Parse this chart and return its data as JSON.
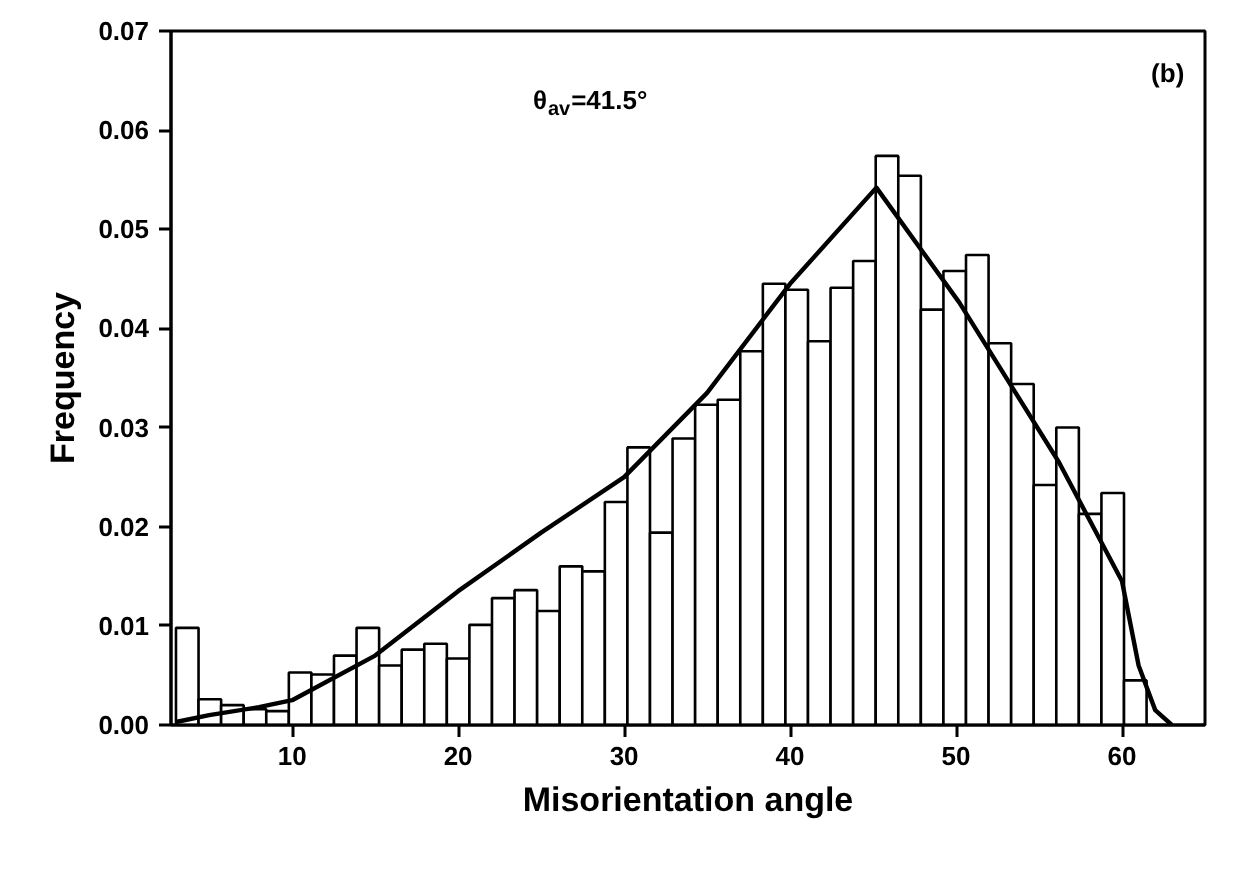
{
  "chart_data": {
    "type": "histogram",
    "xlabel": "Misorientation angle",
    "ylabel": "Frequency",
    "annotations": [
      "θ$_{av}$=41.5°",
      "(b)"
    ],
    "xlim": [
      2.7,
      65
    ],
    "ylim": [
      0,
      0.07
    ],
    "xticks": [
      10,
      20,
      30,
      40,
      50,
      60
    ],
    "yticks": [
      {
        "value": 0,
        "label": "0.00"
      },
      {
        "value": 0.01,
        "label": "0.01"
      },
      {
        "value": 0.02,
        "label": "0.02"
      },
      {
        "value": 0.03,
        "label": "0.03"
      },
      {
        "value": 0.04,
        "label": "0.04"
      },
      {
        "value": 0.05,
        "label": "0.05"
      },
      {
        "value": 0.06,
        "label": "0.06"
      },
      {
        "value": 0.07,
        "label": "0.07"
      }
    ],
    "grid": false,
    "series": [
      {
        "color": "#ffffff",
        "bins": [
          3,
          4.36,
          5.72,
          7.08,
          8.44,
          9.8,
          11.16,
          12.52,
          13.88,
          15.24,
          16.6,
          17.96,
          19.32,
          20.68,
          22.04,
          23.4,
          24.76,
          26.12,
          27.48,
          28.84,
          30.2,
          31.56,
          32.92,
          34.28,
          35.64,
          37,
          38.36,
          39.72,
          41.08,
          42.44,
          43.8,
          45.16,
          46.52,
          47.88,
          49.24,
          50.6,
          51.96,
          53.32,
          54.68,
          56.04,
          57.4,
          58.76,
          60.12,
          61.48
        ],
        "values": [
          0.0098,
          0.0026,
          0.002,
          0.0016,
          0.0014,
          0.0053,
          0.0051,
          0.007,
          0.0098,
          0.006,
          0.0076,
          0.0082,
          0.0067,
          0.0101,
          0.0128,
          0.0136,
          0.0115,
          0.016,
          0.0155,
          0.0225,
          0.028,
          0.0194,
          0.0289,
          0.0323,
          0.0328,
          0.0377,
          0.0445,
          0.0439,
          0.0387,
          0.0441,
          0.0468,
          0.0574,
          0.0554,
          0.0419,
          0.0458,
          0.0474,
          0.0385,
          0.0344,
          0.0242,
          0.03,
          0.0213,
          0.0234,
          0.0045
        ]
      },
      {
        "type": "line",
        "color": "#000000",
        "x": [
          3,
          5,
          8,
          10,
          15,
          20,
          25,
          30,
          35,
          40,
          45.2,
          50.2,
          56.2,
          60,
          61,
          62,
          63
        ],
        "values": [
          0.0003,
          0.001,
          0.0018,
          0.0025,
          0.007,
          0.0135,
          0.0194,
          0.025,
          0.0335,
          0.0445,
          0.0542,
          0.0426,
          0.0265,
          0.0145,
          0.006,
          0.0015,
          0
        ]
      }
    ]
  }
}
